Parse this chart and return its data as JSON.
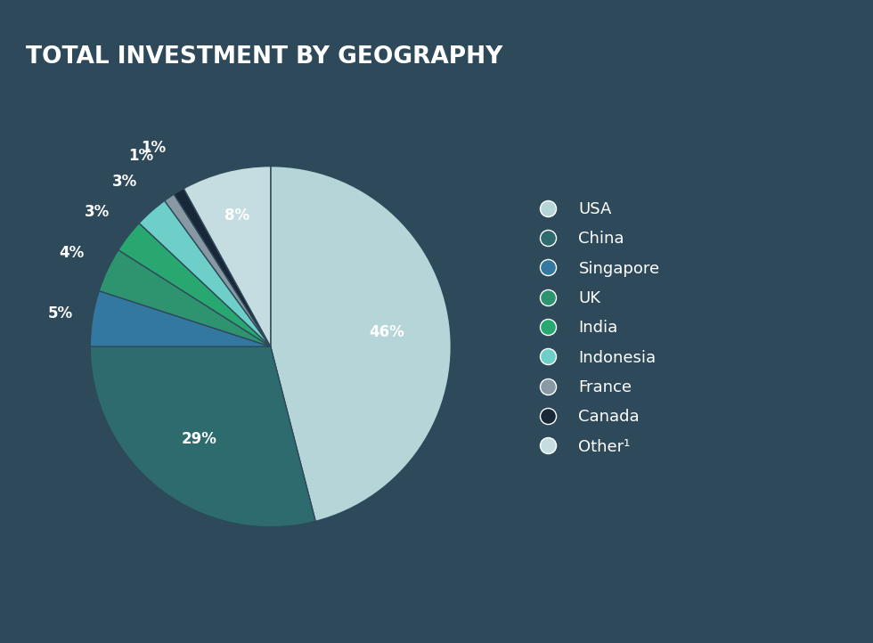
{
  "title": "TOTAL INVESTMENT BY GEOGRAPHY",
  "background_color": "#2e4a5a",
  "text_color": "#ffffff",
  "labels": [
    "USA",
    "China",
    "Singapore",
    "UK",
    "India",
    "Indonesia",
    "France",
    "Canada",
    "Other¹"
  ],
  "values": [
    46,
    29,
    5,
    4,
    3,
    3,
    1,
    1,
    8
  ],
  "colors": [
    "#b5d5d8",
    "#2d6b6e",
    "#3278a0",
    "#2e9470",
    "#28a870",
    "#6ecec8",
    "#8899a4",
    "#182838",
    "#c5dde0"
  ],
  "pct_labels": [
    "46%",
    "29%",
    "5%",
    "4%",
    "3%",
    "3%",
    "1%",
    "1%",
    "8%"
  ],
  "startangle": 90,
  "figsize": [
    9.8,
    7.22
  ],
  "dpi": 100,
  "title_fontsize": 19,
  "label_fontsize": 12,
  "legend_fontsize": 13
}
